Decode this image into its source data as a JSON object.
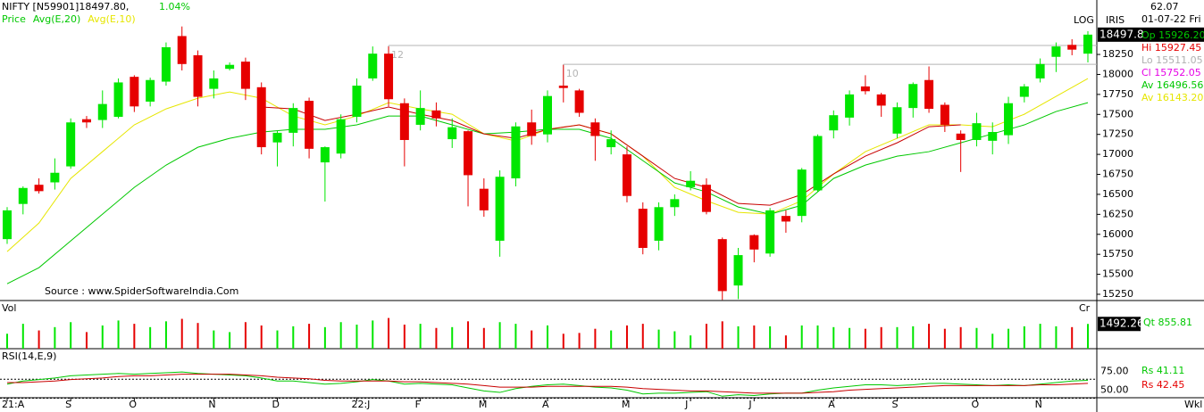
{
  "chart_data": {
    "type": "candlestick",
    "title": "NIFTY [N59901]18497.80,",
    "change": "1.04%",
    "legend": [
      {
        "name": "Price",
        "color": "#00c800"
      },
      {
        "name": "Avg(E,20)",
        "color": "#00c800"
      },
      {
        "name": "Avg(E,10)",
        "color": "#e6e600"
      }
    ],
    "source": "Source : www.SpiderSoftwareIndia.Com",
    "scale_label": "LOG",
    "indicator_name": "IRIS",
    "corner_value": "62.07",
    "date": "01-07-22 Fri",
    "info": [
      {
        "text": "Op 15926.20",
        "color": "#00c800"
      },
      {
        "text": "Hi 15927.45",
        "color": "#e60000"
      },
      {
        "text": "Lo 15511.05",
        "color": "#b0b0b0"
      },
      {
        "text": "Cl 15752.05",
        "color": "#e600e6"
      },
      {
        "text": "Av 16496.56",
        "color": "#00c800"
      },
      {
        "text": "Av 16143.20",
        "color": "#e6e600"
      }
    ],
    "categories": [
      "21:A",
      null,
      null,
      null,
      "S",
      null,
      null,
      null,
      "O",
      null,
      null,
      null,
      null,
      "N",
      null,
      null,
      null,
      "D",
      null,
      null,
      null,
      null,
      "22:J",
      null,
      null,
      null,
      "F",
      null,
      null,
      null,
      "M",
      null,
      null,
      null,
      "A",
      null,
      null,
      null,
      null,
      "M",
      null,
      null,
      null,
      "J",
      null,
      null,
      null,
      "J",
      null,
      null,
      null,
      null,
      "A",
      null,
      null,
      null,
      "S",
      null,
      null,
      null,
      null,
      "O",
      null,
      null,
      null,
      "N",
      null,
      null,
      null
    ],
    "up_color": "#00e600",
    "down_color": "#e60000",
    "open": [
      15940,
      16380,
      16620,
      16650,
      16850,
      17440,
      17430,
      17470,
      17970,
      17660,
      17910,
      18480,
      18240,
      17820,
      18070,
      18160,
      17840,
      17150,
      17270,
      17670,
      16900,
      17010,
      17470,
      17950,
      18260,
      17640,
      17370,
      17550,
      17190,
      17290,
      16570,
      15920,
      16700,
      17400,
      17250,
      17860,
      17800,
      17400,
      17090,
      17000,
      16320,
      15920,
      16340,
      16590,
      16620,
      15940,
      15360,
      15990,
      15760,
      16230,
      16230,
      16550,
      17300,
      17460,
      17850,
      17750,
      17260,
      17580,
      17930,
      17620,
      17260,
      17180,
      17170,
      17240,
      17720,
      17950,
      18220,
      18370,
      18260
    ],
    "high": [
      16340,
      16600,
      16700,
      16950,
      17450,
      17480,
      17800,
      17950,
      17990,
      17960,
      18400,
      18600,
      18300,
      18050,
      18150,
      18210,
      17900,
      17300,
      17640,
      17710,
      17100,
      17500,
      17950,
      18350,
      18350,
      17700,
      17800,
      17650,
      17450,
      17300,
      16700,
      16800,
      17400,
      17560,
      17800,
      18120,
      17820,
      17450,
      17300,
      17100,
      16400,
      16400,
      16500,
      16790,
      16700,
      15960,
      15830,
      16000,
      16330,
      16300,
      16830,
      17250,
      17550,
      17800,
      17990,
      17770,
      17650,
      17900,
      18100,
      17650,
      17300,
      17520,
      17400,
      17720,
      17880,
      18200,
      18400,
      18440,
      18540
    ],
    "low": [
      15880,
      16250,
      16510,
      16560,
      16820,
      17330,
      17330,
      17450,
      17530,
      17600,
      17860,
      18050,
      17600,
      17700,
      18050,
      17680,
      17000,
      16850,
      17100,
      16950,
      16410,
      16950,
      17400,
      17920,
      17600,
      16850,
      17300,
      17350,
      17080,
      16350,
      16220,
      15720,
      16600,
      17120,
      17150,
      17650,
      17470,
      16920,
      17000,
      16400,
      15750,
      15800,
      16230,
      16550,
      16250,
      15180,
      15190,
      15650,
      15720,
      16020,
      16150,
      16530,
      17200,
      17360,
      17750,
      17470,
      17200,
      17460,
      17520,
      17280,
      16780,
      17100,
      17000,
      17130,
      17650,
      17900,
      18030,
      18240,
      18150
    ],
    "close": [
      16300,
      16580,
      16540,
      16770,
      17400,
      17400,
      17630,
      17900,
      17600,
      17930,
      18340,
      18130,
      17720,
      17950,
      18120,
      17820,
      17090,
      17270,
      17580,
      17070,
      17090,
      17440,
      17860,
      18260,
      17690,
      17180,
      17580,
      17450,
      17340,
      16740,
      16300,
      16720,
      17350,
      17230,
      17730,
      17830,
      17520,
      17230,
      17190,
      16480,
      15830,
      16340,
      16440,
      16670,
      16280,
      15290,
      15740,
      15810,
      16300,
      16160,
      16810,
      17230,
      17490,
      17750,
      17790,
      17610,
      17590,
      17880,
      17570,
      17370,
      17180,
      17390,
      17280,
      17640,
      17850,
      18130,
      18350,
      18310,
      18497.8
    ],
    "averages": [
      {
        "color": "#e6e600",
        "x": [
          0,
          2,
          4,
          6,
          8,
          10,
          12,
          14,
          16,
          18,
          20,
          22,
          24,
          26,
          28,
          30,
          32,
          34,
          36,
          38,
          40,
          42,
          44,
          46,
          48,
          50,
          52,
          54,
          56,
          58,
          60,
          62,
          64,
          66,
          68
        ],
        "values": [
          15784,
          16141,
          16699,
          17034,
          17369,
          17569,
          17703,
          17781,
          17703,
          17480,
          17369,
          17480,
          17647,
          17569,
          17502,
          17257,
          17167,
          17313,
          17369,
          17257,
          16978,
          16587,
          16420,
          16275,
          16252,
          16420,
          16755,
          17034,
          17201,
          17369,
          17369,
          17346,
          17502,
          17725,
          17949
        ]
      },
      {
        "color": "#00c800",
        "x": [
          0,
          2,
          4,
          6,
          8,
          10,
          12,
          14,
          16,
          18,
          20,
          22,
          24,
          26,
          28,
          30,
          32,
          34,
          36,
          38,
          40,
          42,
          44,
          46,
          48,
          50,
          52,
          54,
          56,
          58,
          60,
          62,
          64,
          66,
          68
        ],
        "values": [
          15382,
          15583,
          15918,
          16252,
          16587,
          16866,
          17089,
          17201,
          17279,
          17313,
          17313,
          17369,
          17480,
          17480,
          17369,
          17257,
          17279,
          17313,
          17313,
          17201,
          16922,
          16643,
          16531,
          16342,
          16252,
          16364,
          16699,
          16866,
          16978,
          17034,
          17145,
          17257,
          17369,
          17536,
          17647
        ]
      },
      {
        "color": "#c80000",
        "x": [
          16,
          18,
          20,
          22,
          24,
          26,
          28,
          30,
          32,
          34,
          36,
          38,
          40,
          42,
          44,
          46,
          48,
          50,
          52,
          54,
          56,
          58,
          60
        ],
        "values": [
          17592,
          17569,
          17424,
          17502,
          17592,
          17502,
          17424,
          17257,
          17201,
          17313,
          17369,
          17257,
          16978,
          16699,
          16587,
          16386,
          16364,
          16498,
          16755,
          16978,
          17145,
          17346,
          17369
        ]
      }
    ],
    "levels": [
      {
        "value": 18362,
        "label": "12",
        "start": 24
      },
      {
        "value": 18127,
        "label": "10",
        "start": 35
      }
    ],
    "ylim": [
      15172,
      18931
    ],
    "yticks": [
      15250,
      15500,
      15750,
      16000,
      16250,
      16500,
      16750,
      17000,
      17250,
      17500,
      17750,
      18000,
      18250
    ],
    "volume": {
      "title": "Vol",
      "unit_label": "Cr",
      "info": "Qt 855.81",
      "ylim": [
        0,
        2850
      ],
      "values": [
        900,
        1500,
        1100,
        1300,
        1600,
        1000,
        1400,
        1700,
        1500,
        1300,
        1650,
        1800,
        1550,
        1100,
        1000,
        1600,
        1400,
        1100,
        1350,
        1500,
        1300,
        1600,
        1450,
        1700,
        1850,
        1450,
        1500,
        1250,
        1300,
        1650,
        1250,
        1600,
        1500,
        1100,
        1400,
        900,
        950,
        1200,
        1100,
        1400,
        1500,
        1150,
        1050,
        800,
        1500,
        1650,
        1350,
        1400,
        1350,
        800,
        1400,
        1400,
        1300,
        1250,
        1200,
        1300,
        1300,
        1350,
        1500,
        1200,
        1300,
        1250,
        900,
        1200,
        1350,
        1500,
        1350,
        1300,
        1492.26
      ]
    },
    "rsi": {
      "title": "RSI(14,E,9)",
      "ylim": [
        40,
        100
      ],
      "yticks": [
        {
          "value": 75,
          "label": "75.00"
        },
        {
          "value": 50,
          "label": "50.00"
        }
      ],
      "info": [
        {
          "text": "Rs 41.11",
          "color": "#00c800"
        },
        {
          "text": "Rs 42.45",
          "color": "#e60000"
        }
      ],
      "series": [
        {
          "color": "#00c800",
          "values": [
            58,
            62,
            64,
            66,
            69,
            70,
            71,
            72,
            71,
            72,
            73,
            74,
            72,
            71,
            70,
            69,
            66,
            62,
            62,
            60,
            58,
            59,
            61,
            64,
            62,
            58,
            59,
            58,
            57,
            53,
            49,
            47,
            52,
            55,
            57,
            58,
            56,
            54,
            53,
            50,
            45,
            46,
            46,
            47,
            48,
            42,
            44,
            43,
            45,
            46,
            46,
            50,
            53,
            55,
            57,
            57,
            56,
            57,
            59,
            59,
            58,
            57,
            56,
            57,
            56,
            58,
            60,
            62,
            63
          ]
        },
        {
          "color": "#c80000",
          "values": [
            60,
            60,
            61,
            62,
            64,
            65,
            66,
            68,
            69,
            69,
            70,
            71,
            71,
            71,
            71,
            70,
            69,
            67,
            66,
            65,
            63,
            62,
            62,
            62,
            62,
            61,
            61,
            60,
            59,
            58,
            56,
            54,
            54,
            54,
            55,
            55,
            55,
            55,
            55,
            54,
            52,
            51,
            50,
            49,
            49,
            48,
            47,
            46,
            46,
            46,
            46,
            47,
            48,
            50,
            51,
            52,
            53,
            54,
            55,
            56,
            56,
            56,
            56,
            56,
            56,
            57,
            57,
            58,
            59
          ]
        }
      ]
    },
    "period": "Wkl"
  }
}
